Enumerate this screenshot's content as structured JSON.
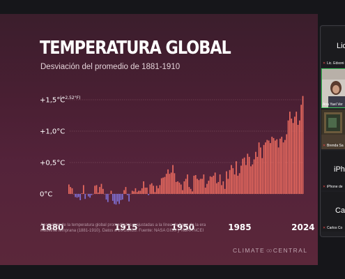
{
  "slide": {
    "title": "TEMPERATURA GLOBAL",
    "subtitle": "Desviación del promedio de 1881-1910",
    "source": "Anomalías de la temperatura global promediadas y ajustadas a la línea de base de la era industrial temprana (1881-1910). Datos a 10/1/2025. Fuente: NASA GISS y NOAA NCEI",
    "brand": "CLIMATE CENTRAL"
  },
  "chart_data": {
    "type": "bar",
    "title": "TEMPERATURA GLOBAL",
    "subtitle": "Desviación del promedio de 1881-1910",
    "x_start": 1880,
    "x_end": 2024,
    "x_ticks": [
      "1880",
      "1915",
      "1950",
      "1985",
      "2024"
    ],
    "y_ticks": [
      {
        "value": 0,
        "label": "0°C"
      },
      {
        "value": 0.5,
        "label": "+0,5°C"
      },
      {
        "value": 1.0,
        "label": "+1,0°C"
      },
      {
        "value": 1.5,
        "label": "+1,5°C"
      }
    ],
    "y_annotation": "(+2,52°F)",
    "ylim": [
      -0.2,
      1.6
    ],
    "positive_color": "#e96a5f",
    "negative_color": "#7f6ed0",
    "values": [
      0.15,
      0.11,
      0.09,
      0.0,
      -0.05,
      -0.06,
      -0.05,
      -0.1,
      0.01,
      0.14,
      -0.08,
      0.0,
      -0.04,
      -0.06,
      -0.02,
      0.0,
      0.13,
      0.14,
      0.02,
      0.11,
      0.16,
      0.08,
      0.0,
      -0.09,
      -0.13,
      0.0,
      0.05,
      -0.11,
      -0.16,
      -0.17,
      -0.12,
      -0.16,
      -0.1,
      -0.09,
      0.06,
      0.11,
      -0.02,
      -0.12,
      0.0,
      0.05,
      0.04,
      0.09,
      0.03,
      0.05,
      0.05,
      0.09,
      0.2,
      0.1,
      0.1,
      -0.02,
      0.15,
      0.17,
      0.13,
      0.03,
      0.13,
      0.09,
      0.14,
      0.25,
      0.26,
      0.27,
      0.32,
      0.39,
      0.32,
      0.34,
      0.46,
      0.33,
      0.19,
      0.2,
      0.18,
      0.15,
      0.06,
      0.2,
      0.24,
      0.31,
      0.11,
      0.08,
      0.04,
      0.29,
      0.3,
      0.24,
      0.22,
      0.24,
      0.24,
      0.31,
      0.1,
      0.16,
      0.21,
      0.28,
      0.27,
      0.29,
      0.34,
      0.17,
      0.19,
      0.31,
      0.14,
      0.2,
      0.08,
      0.36,
      0.24,
      0.38,
      0.46,
      0.41,
      0.31,
      0.52,
      0.29,
      0.33,
      0.45,
      0.56,
      0.58,
      0.46,
      0.64,
      0.59,
      0.44,
      0.47,
      0.55,
      0.67,
      0.59,
      0.82,
      0.74,
      0.57,
      0.78,
      0.82,
      0.86,
      0.85,
      0.81,
      0.91,
      0.89,
      0.85,
      0.87,
      0.74,
      0.88,
      0.91,
      0.82,
      0.86,
      0.95,
      1.17,
      1.31,
      1.2,
      1.13,
      1.23,
      1.31,
      1.1,
      1.17,
      1.42,
      1.56
    ]
  },
  "participants": [
    {
      "display": "Lic",
      "name": "Lic. Edsoni",
      "muted": true
    },
    {
      "display": "",
      "name": "Ana Yael Ver",
      "muted": false,
      "active": true
    },
    {
      "display": "",
      "name": "Brenda Sa",
      "muted": true
    },
    {
      "display": "iPho",
      "name": "iPhone de",
      "muted": true
    },
    {
      "display": "Car",
      "name": "Carlos Co",
      "muted": true
    }
  ]
}
